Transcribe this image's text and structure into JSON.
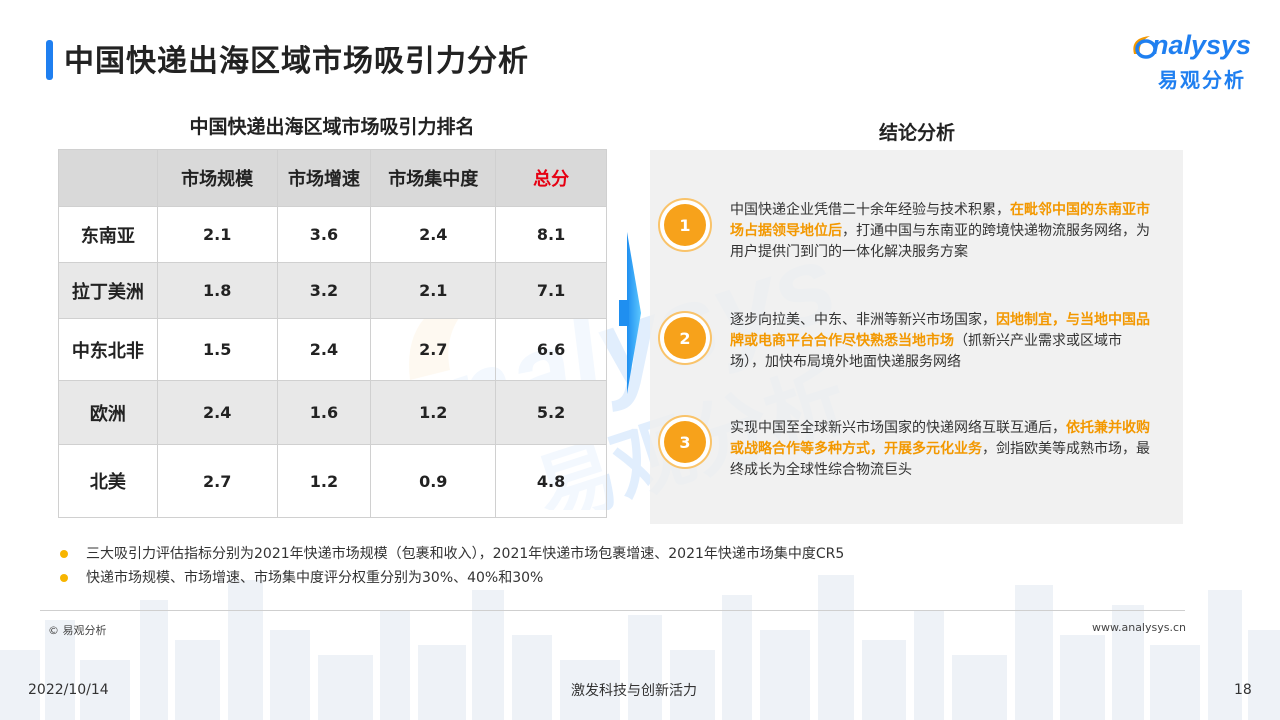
{
  "header": {
    "title": "中国快递出海区域市场吸引力分析",
    "logo_en": "nalysys",
    "logo_cn": "易观分析"
  },
  "table": {
    "title": "中国快递出海区域市场吸引力排名",
    "columns": [
      "",
      "市场规模",
      "市场增速",
      "市场集中度",
      "总分"
    ],
    "rows": [
      {
        "region": "东南亚",
        "scale": "2.1",
        "growth": "3.6",
        "concentration": "2.4",
        "total": "8.1"
      },
      {
        "region": "拉丁美洲",
        "scale": "1.8",
        "growth": "3.2",
        "concentration": "2.1",
        "total": "7.1"
      },
      {
        "region": "中东北非",
        "scale": "1.5",
        "growth": "2.4",
        "concentration": "2.7",
        "total": "6.6"
      },
      {
        "region": "欧洲",
        "scale": "2.4",
        "growth": "1.6",
        "concentration": "1.2",
        "total": "5.2"
      },
      {
        "region": "北美",
        "scale": "2.7",
        "growth": "1.2",
        "concentration": "0.9",
        "total": "4.8"
      }
    ]
  },
  "conclusion": {
    "title": "结论分析",
    "items": [
      {
        "number": "1",
        "text_a": "中国快递企业凭借二十余年经验与技术积累，",
        "highlight": "在毗邻中国的东南亚市场占据领导地位后",
        "text_b": "，打通中国与东南亚的跨境快递物流服务网络，为用户提供门到门的一体化解决服务方案"
      },
      {
        "number": "2",
        "text_a": "逐步向拉美、中东、非洲等新兴市场国家，",
        "highlight": "因地制宜，与当地中国品牌或电商平台合作尽快熟悉当地市场",
        "text_b": "（抓新兴产业需求或区域市场），加快布局境外地面快递服务网络"
      },
      {
        "number": "3",
        "text_a": "实现中国至全球新兴市场国家的快递网络互联互通后，",
        "highlight": "依托兼并收购或战略合作等多种方式，开展多元化业务",
        "text_b": "，剑指欧美等成熟市场，最终成长为全球性综合物流巨头"
      }
    ]
  },
  "notes": [
    "三大吸引力评估指标分别为2021年快递市场规模（包裹和收入），2021年快递市场包裹增速、2021年快递市场集中度CR5",
    "快递市场规模、市场增速、市场集中度评分权重分别为30%、40%和30%"
  ],
  "footer": {
    "copyright": "© 易观分析",
    "website": "www.analysys.cn",
    "date": "2022/10/14",
    "slogan": "激发科技与创新活力",
    "page_number": "18"
  },
  "colors": {
    "accent_blue": "#1f7ff0",
    "highlight_orange": "#f39800",
    "badge_orange": "#f7a21b",
    "total_red": "#e60012"
  }
}
